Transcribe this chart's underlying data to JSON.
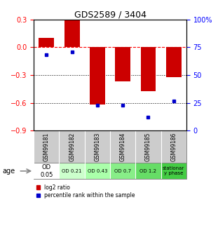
{
  "title": "GDS2589 / 3404",
  "samples": [
    "GSM99181",
    "GSM99182",
    "GSM99183",
    "GSM99184",
    "GSM99185",
    "GSM99186"
  ],
  "log2_ratio": [
    0.1,
    0.29,
    -0.62,
    -0.37,
    -0.47,
    -0.32
  ],
  "percentile_rank": [
    68,
    71,
    23,
    23,
    12,
    27
  ],
  "bar_color": "#cc0000",
  "dot_color": "#0000cc",
  "ylim_left": [
    -0.9,
    0.3
  ],
  "ylim_right": [
    0,
    100
  ],
  "yticks_left": [
    0.3,
    0.0,
    -0.3,
    -0.6,
    -0.9
  ],
  "yticks_right": [
    100,
    75,
    50,
    25,
    0
  ],
  "age_labels": [
    "OD\n0.05",
    "OD 0.21",
    "OD 0.43",
    "OD 0.7",
    "OD 1.2",
    "stationar\ny phase"
  ],
  "age_colors": [
    "#ffffff",
    "#ccffcc",
    "#aaffaa",
    "#88ee88",
    "#66dd66",
    "#44cc44"
  ],
  "gsm_color": "#cccccc",
  "legend_red": "log2 ratio",
  "legend_blue": "percentile rank within the sample",
  "bg_color": "#ffffff",
  "age_label": "age"
}
